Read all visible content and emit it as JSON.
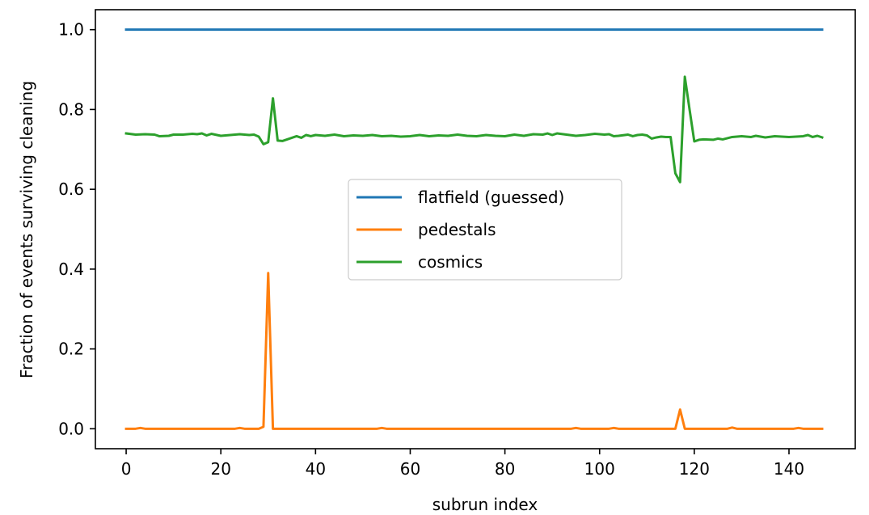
{
  "chart_data": {
    "type": "line",
    "title": "",
    "xlabel": "subrun index",
    "ylabel": "Fraction of events surviving cleaning",
    "xlim": [
      -6.5,
      154
    ],
    "ylim": [
      -0.05,
      1.05
    ],
    "xticks": [
      0,
      20,
      40,
      60,
      80,
      100,
      120,
      140
    ],
    "xtick_labels": [
      "0",
      "20",
      "40",
      "60",
      "80",
      "100",
      "120",
      "140"
    ],
    "yticks": [
      0.0,
      0.2,
      0.4,
      0.6,
      0.8,
      1.0
    ],
    "ytick_labels": [
      "0.0",
      "0.2",
      "0.4",
      "0.6",
      "0.8",
      "1.0"
    ],
    "grid": false,
    "legend": {
      "placement": "center"
    },
    "series": [
      {
        "name": "flatfield (guessed)",
        "color": "#1f77b4",
        "points": [
          [
            0,
            1.0
          ],
          [
            147,
            1.0
          ]
        ]
      },
      {
        "name": "pedestals",
        "color": "#ff7f0e",
        "points": [
          [
            0,
            0.0
          ],
          [
            2,
            0.0
          ],
          [
            3,
            0.002
          ],
          [
            4,
            0.0
          ],
          [
            23,
            0.0
          ],
          [
            24,
            0.002
          ],
          [
            25,
            0.0
          ],
          [
            28,
            0.0
          ],
          [
            29,
            0.005
          ],
          [
            30,
            0.39
          ],
          [
            31,
            0.0
          ],
          [
            53,
            0.0
          ],
          [
            54,
            0.002
          ],
          [
            55,
            0.0
          ],
          [
            94,
            0.0
          ],
          [
            95,
            0.002
          ],
          [
            96,
            0.0
          ],
          [
            102,
            0.0
          ],
          [
            103,
            0.002
          ],
          [
            104,
            0.0
          ],
          [
            116,
            0.0
          ],
          [
            117,
            0.048
          ],
          [
            118,
            0.0
          ],
          [
            127,
            0.0
          ],
          [
            128,
            0.003
          ],
          [
            129,
            0.0
          ],
          [
            141,
            0.0
          ],
          [
            142,
            0.002
          ],
          [
            143,
            0.0
          ],
          [
            146,
            0.0
          ],
          [
            147,
            0.0
          ]
        ]
      },
      {
        "name": "cosmics",
        "color": "#2ca02c",
        "points": [
          [
            0,
            0.74
          ],
          [
            2,
            0.737
          ],
          [
            4,
            0.738
          ],
          [
            6,
            0.737
          ],
          [
            7,
            0.733
          ],
          [
            9,
            0.734
          ],
          [
            10,
            0.737
          ],
          [
            12,
            0.737
          ],
          [
            14,
            0.739
          ],
          [
            15,
            0.738
          ],
          [
            16,
            0.74
          ],
          [
            17,
            0.735
          ],
          [
            18,
            0.739
          ],
          [
            20,
            0.734
          ],
          [
            22,
            0.736
          ],
          [
            24,
            0.738
          ],
          [
            26,
            0.736
          ],
          [
            27,
            0.737
          ],
          [
            28,
            0.732
          ],
          [
            29,
            0.713
          ],
          [
            30,
            0.718
          ],
          [
            31,
            0.828
          ],
          [
            32,
            0.722
          ],
          [
            33,
            0.721
          ],
          [
            34,
            0.725
          ],
          [
            36,
            0.733
          ],
          [
            37,
            0.729
          ],
          [
            38,
            0.736
          ],
          [
            39,
            0.733
          ],
          [
            40,
            0.736
          ],
          [
            42,
            0.734
          ],
          [
            44,
            0.737
          ],
          [
            46,
            0.733
          ],
          [
            48,
            0.735
          ],
          [
            50,
            0.734
          ],
          [
            52,
            0.736
          ],
          [
            54,
            0.733
          ],
          [
            56,
            0.734
          ],
          [
            58,
            0.732
          ],
          [
            60,
            0.733
          ],
          [
            62,
            0.736
          ],
          [
            64,
            0.733
          ],
          [
            66,
            0.735
          ],
          [
            68,
            0.734
          ],
          [
            70,
            0.737
          ],
          [
            72,
            0.734
          ],
          [
            74,
            0.733
          ],
          [
            76,
            0.736
          ],
          [
            78,
            0.734
          ],
          [
            80,
            0.733
          ],
          [
            82,
            0.737
          ],
          [
            84,
            0.734
          ],
          [
            86,
            0.738
          ],
          [
            88,
            0.737
          ],
          [
            89,
            0.74
          ],
          [
            90,
            0.736
          ],
          [
            91,
            0.74
          ],
          [
            93,
            0.737
          ],
          [
            95,
            0.734
          ],
          [
            97,
            0.736
          ],
          [
            99,
            0.739
          ],
          [
            101,
            0.737
          ],
          [
            102,
            0.738
          ],
          [
            103,
            0.733
          ],
          [
            104,
            0.734
          ],
          [
            106,
            0.737
          ],
          [
            107,
            0.733
          ],
          [
            108,
            0.736
          ],
          [
            109,
            0.737
          ],
          [
            110,
            0.735
          ],
          [
            111,
            0.727
          ],
          [
            112,
            0.73
          ],
          [
            113,
            0.732
          ],
          [
            114,
            0.731
          ],
          [
            115,
            0.731
          ],
          [
            116,
            0.64
          ],
          [
            117,
            0.618
          ],
          [
            118,
            0.882
          ],
          [
            119,
            0.8
          ],
          [
            120,
            0.72
          ],
          [
            121,
            0.724
          ],
          [
            122,
            0.725
          ],
          [
            124,
            0.724
          ],
          [
            125,
            0.727
          ],
          [
            126,
            0.725
          ],
          [
            128,
            0.731
          ],
          [
            130,
            0.733
          ],
          [
            132,
            0.731
          ],
          [
            133,
            0.734
          ],
          [
            135,
            0.73
          ],
          [
            137,
            0.733
          ],
          [
            140,
            0.731
          ],
          [
            143,
            0.733
          ],
          [
            144,
            0.736
          ],
          [
            145,
            0.731
          ],
          [
            146,
            0.734
          ],
          [
            147,
            0.73
          ]
        ]
      }
    ]
  }
}
